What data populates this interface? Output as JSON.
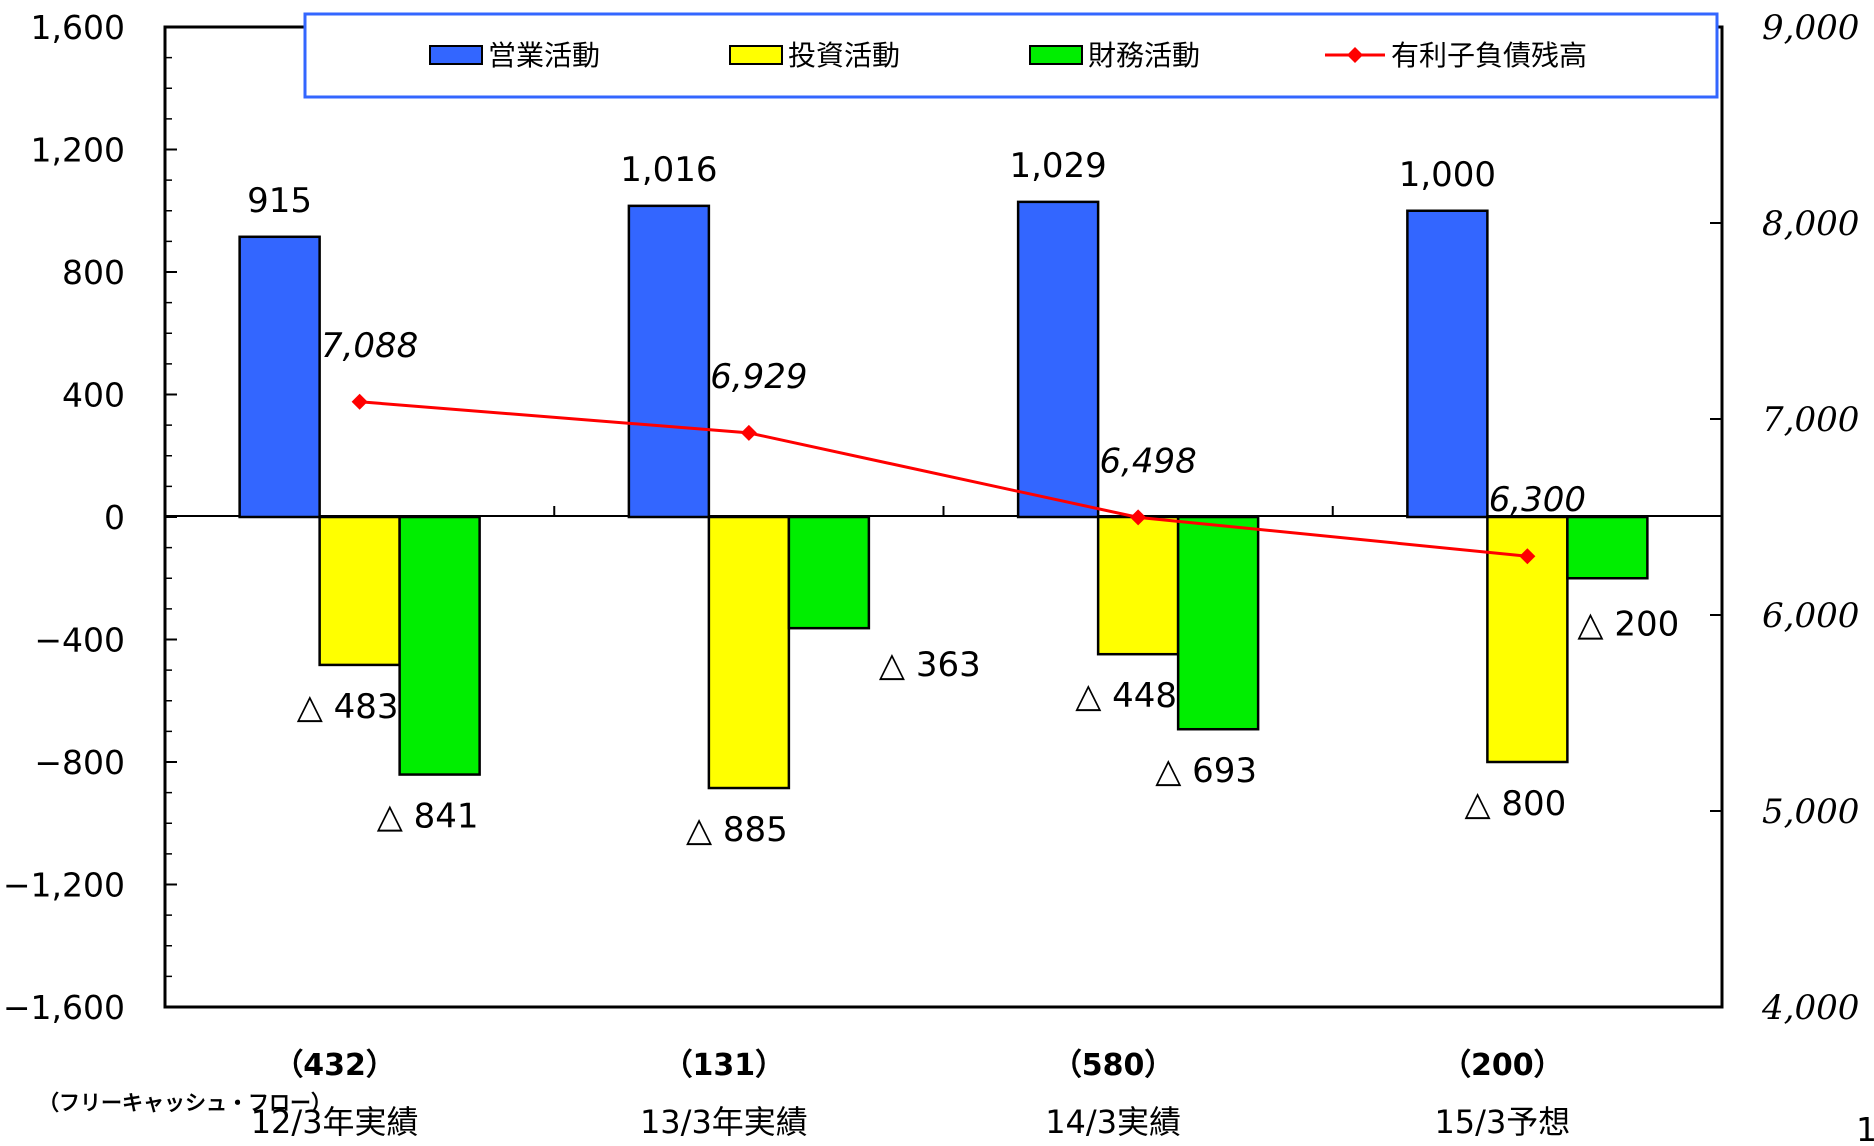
{
  "chart_data": {
    "type": "bar",
    "categories": [
      "12/3年実績",
      "13/3年実績",
      "14/3実績",
      "15/3予想"
    ],
    "free_cash_flow_label": "（フリーキャッシュ・フロー）",
    "free_cash_flow": [
      "（432）",
      "（131）",
      "（580）",
      "（200）"
    ],
    "y_left": {
      "min": -1600,
      "max": 1600,
      "ticks": [
        1600,
        1200,
        800,
        400,
        0,
        -400,
        -800,
        -1200,
        -1600
      ],
      "tick_labels": [
        "1,600",
        "1,200",
        "800",
        "400",
        "0",
        "−400",
        "−800",
        "−1,200",
        "−1,600"
      ]
    },
    "y_right": {
      "min": 4000,
      "max": 9000,
      "ticks": [
        9000,
        8000,
        7000,
        6000,
        5000,
        4000
      ],
      "tick_labels": [
        "9,000",
        "8,000",
        "7,000",
        "6,000",
        "5,000",
        "4,000"
      ]
    },
    "series": [
      {
        "name": "営業活動",
        "kind": "bar",
        "color": "#3366ff",
        "values": [
          915,
          1016,
          1029,
          1000
        ],
        "labels": [
          "915",
          "1,016",
          "1,029",
          "1,000"
        ]
      },
      {
        "name": "投資活動",
        "kind": "bar",
        "color": "#ffff00",
        "values": [
          -483,
          -885,
          -448,
          -800
        ],
        "labels": [
          "△ 483",
          "△ 885",
          "△ 448",
          "△ 800"
        ]
      },
      {
        "name": "財務活動",
        "kind": "bar",
        "color": "#00ee00",
        "values": [
          -841,
          -363,
          -693,
          -200
        ],
        "labels": [
          "△ 841",
          "△ 363",
          "△ 693",
          "△ 200"
        ]
      },
      {
        "name": "有利子負債残高",
        "kind": "line",
        "axis": "right",
        "color": "#ff0000",
        "values": [
          7088,
          6929,
          6498,
          6300
        ],
        "labels": [
          "7,088",
          "6,929",
          "6,498",
          "6,300"
        ]
      }
    ],
    "legend_placement": "top",
    "grid": false
  },
  "page_number_fragment": "1("
}
